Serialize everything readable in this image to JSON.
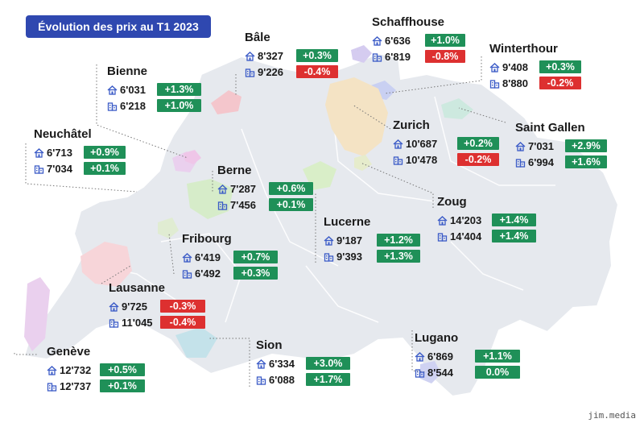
{
  "title": "Évolution des prix au T1 2023",
  "watermark": "jim.media",
  "legend_icons": {
    "row1": "house-icon",
    "row2": "apartment-building-icon"
  },
  "colors": {
    "title_bg": "#2f48b0",
    "positive": "#1f9058",
    "negative": "#dd3030",
    "map_fill": "#e6e9ee",
    "icon": "#3b5bc7"
  },
  "cities": [
    {
      "id": "bale",
      "name": "Bâle",
      "house_price": "8'327",
      "house_change": "+0.3%",
      "apt_price": "9'226",
      "apt_change": "-0.4%"
    },
    {
      "id": "schaffhouse",
      "name": "Schaffhouse",
      "house_price": "6'636",
      "house_change": "+1.0%",
      "apt_price": "6'819",
      "apt_change": "-0.8%"
    },
    {
      "id": "winterthour",
      "name": "Winterthour",
      "house_price": "9'408",
      "house_change": "+0.3%",
      "apt_price": "8'880",
      "apt_change": "-0.2%"
    },
    {
      "id": "bienne",
      "name": "Bienne",
      "house_price": "6'031",
      "house_change": "+1.3%",
      "apt_price": "6'218",
      "apt_change": "+1.0%"
    },
    {
      "id": "saint-gallen",
      "name": "Saint Gallen",
      "house_price": "7'031",
      "house_change": "+2.9%",
      "apt_price": "6'994",
      "apt_change": "+1.6%"
    },
    {
      "id": "zurich",
      "name": "Zurich",
      "house_price": "10'687",
      "house_change": "+0.2%",
      "apt_price": "10'478",
      "apt_change": "-0.2%"
    },
    {
      "id": "neuchatel",
      "name": "Neuchâtel",
      "house_price": "6'713",
      "house_change": "+0.9%",
      "apt_price": "7'034",
      "apt_change": "+0.1%"
    },
    {
      "id": "berne",
      "name": "Berne",
      "house_price": "7'287",
      "house_change": "+0.6%",
      "apt_price": "7'456",
      "apt_change": "+0.1%"
    },
    {
      "id": "zoug",
      "name": "Zoug",
      "house_price": "14'203",
      "house_change": "+1.4%",
      "apt_price": "14'404",
      "apt_change": "+1.4%"
    },
    {
      "id": "lucerne",
      "name": "Lucerne",
      "house_price": "9'187",
      "house_change": "+1.2%",
      "apt_price": "9'393",
      "apt_change": "+1.3%"
    },
    {
      "id": "fribourg",
      "name": "Fribourg",
      "house_price": "6'419",
      "house_change": "+0.7%",
      "apt_price": "6'492",
      "apt_change": "+0.3%"
    },
    {
      "id": "lausanne",
      "name": "Lausanne",
      "house_price": "9'725",
      "house_change": "-0.3%",
      "apt_price": "11'045",
      "apt_change": "-0.4%"
    },
    {
      "id": "lugano",
      "name": "Lugano",
      "house_price": "6'869",
      "house_change": "+1.1%",
      "apt_price": "8'544",
      "apt_change": "0.0%"
    },
    {
      "id": "sion",
      "name": "Sion",
      "house_price": "6'334",
      "house_change": "+3.0%",
      "apt_price": "6'088",
      "apt_change": "+1.7%"
    },
    {
      "id": "geneve",
      "name": "Genève",
      "house_price": "12'732",
      "house_change": "+0.5%",
      "apt_price": "12'737",
      "apt_change": "+0.1%"
    }
  ]
}
